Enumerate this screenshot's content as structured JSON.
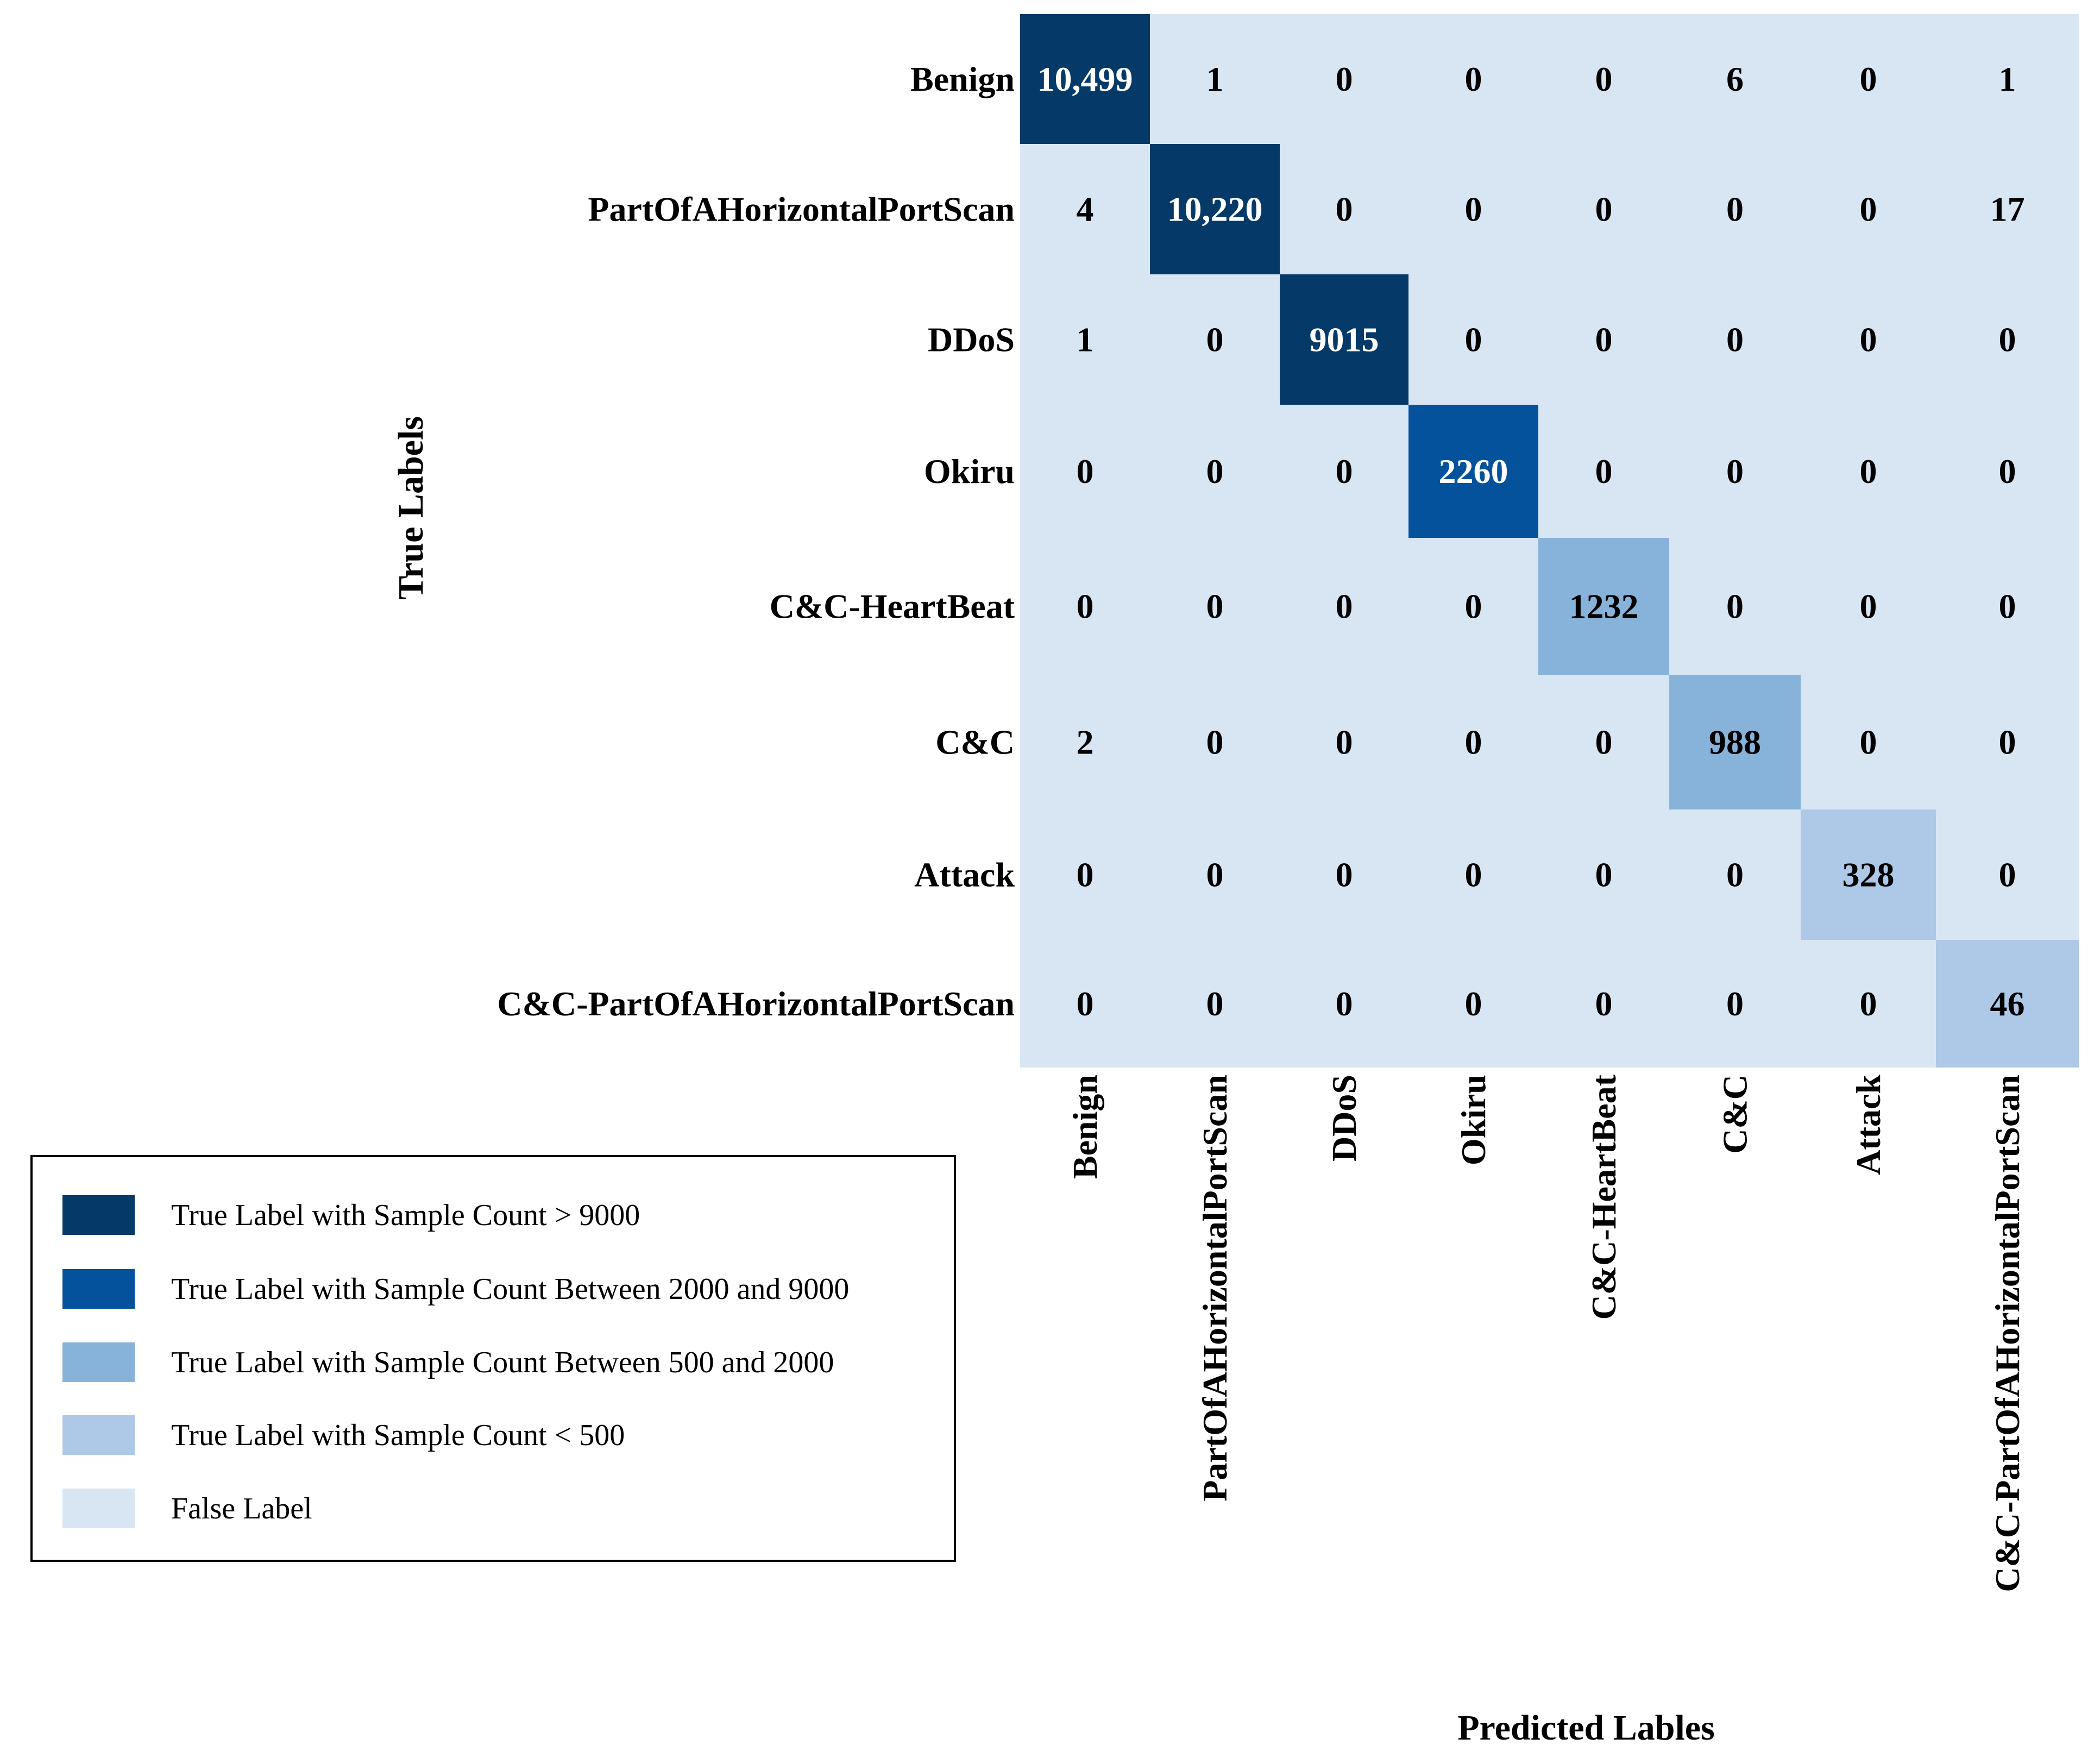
{
  "chart_data": {
    "type": "heatmap",
    "title": "",
    "xlabel": "Predicted Lables",
    "ylabel": "True Labels",
    "labels": [
      "Benign",
      "PartOfAHorizontalPortScan",
      "DDoS",
      "Okiru",
      "C&C-HeartBeat",
      "C&C",
      "Attack",
      "C&C-PartOfAHorizontalPortScan"
    ],
    "matrix": [
      [
        10499,
        1,
        0,
        0,
        0,
        6,
        0,
        1
      ],
      [
        4,
        10220,
        0,
        0,
        0,
        0,
        0,
        17
      ],
      [
        1,
        0,
        9015,
        0,
        0,
        0,
        0,
        0
      ],
      [
        0,
        0,
        0,
        2260,
        0,
        0,
        0,
        0
      ],
      [
        0,
        0,
        0,
        0,
        1232,
        0,
        0,
        0
      ],
      [
        2,
        0,
        0,
        0,
        0,
        988,
        0,
        0
      ],
      [
        0,
        0,
        0,
        0,
        0,
        0,
        328,
        0
      ],
      [
        0,
        0,
        0,
        0,
        0,
        0,
        0,
        46
      ]
    ],
    "display_values": [
      [
        "10,499",
        "1",
        "0",
        "0",
        "0",
        "6",
        "0",
        "1"
      ],
      [
        "4",
        "10,220",
        "0",
        "0",
        "0",
        "0",
        "0",
        "17"
      ],
      [
        "1",
        "0",
        "9015",
        "0",
        "0",
        "0",
        "0",
        "0"
      ],
      [
        "0",
        "0",
        "0",
        "2260",
        "0",
        "0",
        "0",
        "0"
      ],
      [
        "0",
        "0",
        "0",
        "0",
        "1232",
        "0",
        "0",
        "0"
      ],
      [
        "2",
        "0",
        "0",
        "0",
        "0",
        "988",
        "0",
        "0"
      ],
      [
        "0",
        "0",
        "0",
        "0",
        "0",
        "0",
        "328",
        "0"
      ],
      [
        "0",
        "0",
        "0",
        "0",
        "0",
        "0",
        "0",
        "46"
      ]
    ],
    "legend": [
      {
        "label": "True Label with Sample Count > 9000",
        "color": "#053a68"
      },
      {
        "label": "True Label with Sample Count Between 2000 and 9000",
        "color": "#03529b"
      },
      {
        "label": "True Label with Sample Count Between 500 and 2000",
        "color": "#87b2da"
      },
      {
        "label": "True Label with Sample Count < 500",
        "color": "#adc9e7"
      },
      {
        "label": "False Label",
        "color": "#d8e6f3"
      }
    ],
    "legend_position": "bottom-left"
  }
}
